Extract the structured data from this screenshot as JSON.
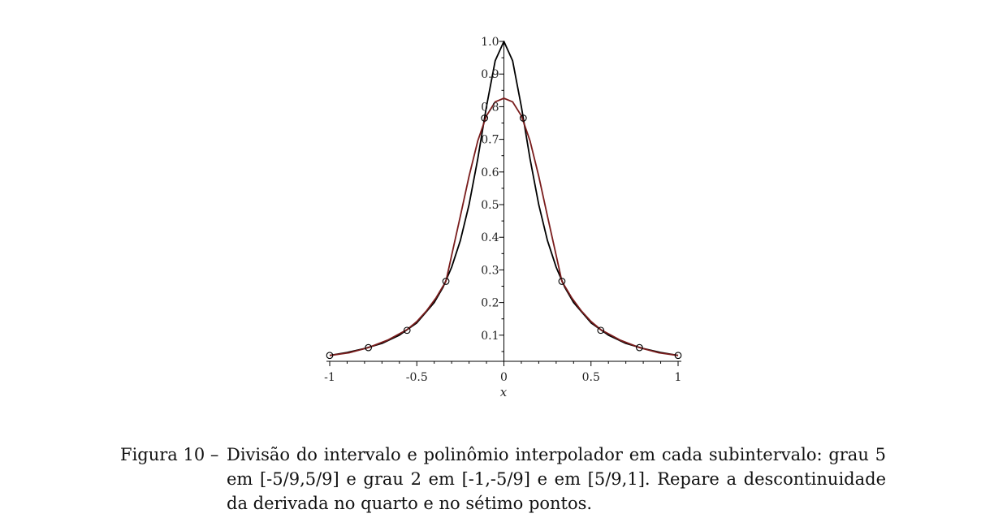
{
  "chart_data": {
    "type": "line",
    "xlabel": "x",
    "ylabel": "",
    "xlim": [
      -1,
      1
    ],
    "ylim": [
      0.02,
      1.0
    ],
    "x_ticks": [
      "-1",
      "-0.5",
      "0",
      "0.5",
      "1"
    ],
    "x_tick_values": [
      -1,
      -0.5,
      0,
      0.5,
      1
    ],
    "y_ticks": [
      "0.1",
      "0.2",
      "0.3",
      "0.4",
      "0.5",
      "0.6",
      "0.7",
      "0.8",
      "0.9",
      "1.0"
    ],
    "y_tick_values": [
      0.1,
      0.2,
      0.3,
      0.4,
      0.5,
      0.6,
      0.7,
      0.8,
      0.9,
      1.0
    ],
    "grid": false,
    "series": [
      {
        "color": "#000000",
        "points": [
          [
            -1,
            0.038
          ],
          [
            -0.9,
            0.047
          ],
          [
            -0.8,
            0.059
          ],
          [
            -0.7,
            0.075
          ],
          [
            -0.6,
            0.1
          ],
          [
            -0.5,
            0.138
          ],
          [
            -0.4,
            0.2
          ],
          [
            -0.35,
            0.246
          ],
          [
            -0.3,
            0.308
          ],
          [
            -0.25,
            0.39
          ],
          [
            -0.2,
            0.5
          ],
          [
            -0.15,
            0.64
          ],
          [
            -0.1,
            0.8
          ],
          [
            -0.05,
            0.941
          ],
          [
            0,
            1.0
          ],
          [
            0.05,
            0.941
          ],
          [
            0.1,
            0.8
          ],
          [
            0.15,
            0.64
          ],
          [
            0.2,
            0.5
          ],
          [
            0.25,
            0.39
          ],
          [
            0.3,
            0.308
          ],
          [
            0.35,
            0.246
          ],
          [
            0.4,
            0.2
          ],
          [
            0.5,
            0.138
          ],
          [
            0.6,
            0.1
          ],
          [
            0.7,
            0.075
          ],
          [
            0.8,
            0.059
          ],
          [
            0.9,
            0.047
          ],
          [
            1,
            0.038
          ]
        ]
      },
      {
        "color": "#7a1d1d",
        "points": [
          [
            -1,
            0.038
          ],
          [
            -0.889,
            0.046
          ],
          [
            -0.778,
            0.062
          ],
          [
            -0.667,
            0.085
          ],
          [
            -0.556,
            0.117
          ],
          [
            -0.5,
            0.142
          ],
          [
            -0.444,
            0.175
          ],
          [
            -0.389,
            0.215
          ],
          [
            -0.333,
            0.265
          ],
          [
            -0.3,
            0.344
          ],
          [
            -0.25,
            0.465
          ],
          [
            -0.2,
            0.587
          ],
          [
            -0.15,
            0.695
          ],
          [
            -0.1,
            0.772
          ],
          [
            -0.05,
            0.815
          ],
          [
            0,
            0.826
          ],
          [
            0.05,
            0.815
          ],
          [
            0.1,
            0.772
          ],
          [
            0.15,
            0.695
          ],
          [
            0.2,
            0.587
          ],
          [
            0.25,
            0.465
          ],
          [
            0.3,
            0.344
          ],
          [
            0.333,
            0.265
          ],
          [
            0.389,
            0.215
          ],
          [
            0.444,
            0.175
          ],
          [
            0.5,
            0.142
          ],
          [
            0.556,
            0.117
          ],
          [
            0.667,
            0.085
          ],
          [
            0.778,
            0.062
          ],
          [
            0.889,
            0.046
          ],
          [
            1,
            0.038
          ]
        ]
      }
    ],
    "markers": {
      "style": "open-circle",
      "points": [
        [
          -1,
          0.038
        ],
        [
          -0.778,
          0.062
        ],
        [
          -0.556,
          0.115
        ],
        [
          -0.333,
          0.265
        ],
        [
          -0.111,
          0.765
        ],
        [
          0.111,
          0.765
        ],
        [
          0.333,
          0.265
        ],
        [
          0.556,
          0.115
        ],
        [
          0.778,
          0.062
        ],
        [
          1,
          0.038
        ]
      ]
    }
  },
  "caption": {
    "label": "Figura 10 –",
    "text": "Divisão do intervalo e polinômio interpolador em cada subintervalo: grau 5 em [-5/9,5/9] e grau 2 em [-1,-5/9] e em [5/9,1]. Repare a descontinuidade da derivada no quarto e no sétimo pontos."
  }
}
